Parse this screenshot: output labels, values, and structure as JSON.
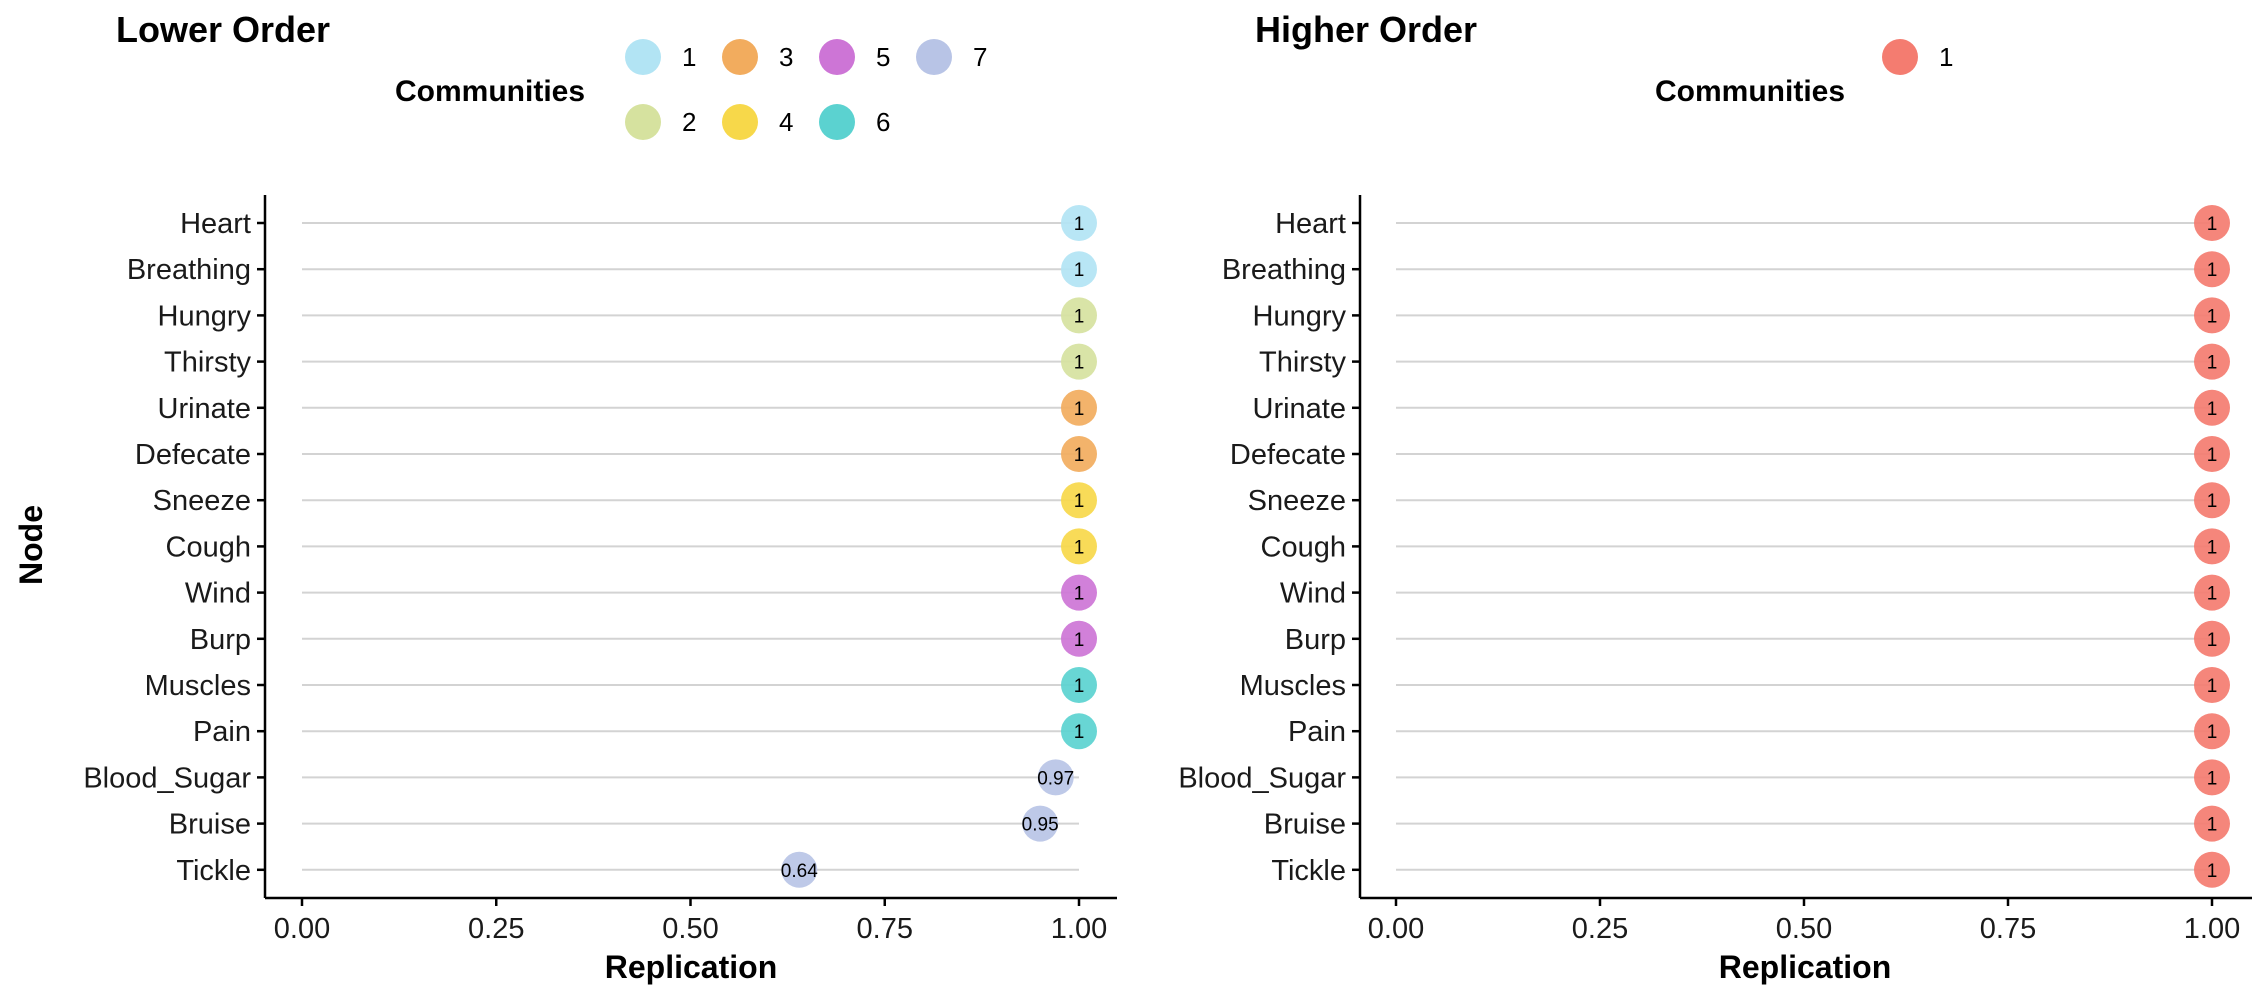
{
  "colors": {
    "1": "#b2e4f4",
    "2": "#d6e29f",
    "3": "#f2ac5e",
    "4": "#f7d84a",
    "5": "#cd75d6",
    "6": "#5bd2d0",
    "7": "#b8c4e6",
    "higher_1": "#f47c70"
  },
  "chart_data": [
    {
      "type": "scatter",
      "title": "Lower Order",
      "xlabel": "Replication",
      "ylabel": "Node",
      "xlim": [
        0,
        1
      ],
      "x_ticks": [
        "0.00",
        "0.25",
        "0.50",
        "0.75",
        "1.00"
      ],
      "x_tick_values": [
        0,
        0.25,
        0.5,
        0.75,
        1
      ],
      "legend": {
        "title": "Communities",
        "position": "top",
        "entries": [
          "1",
          "2",
          "3",
          "4",
          "5",
          "6",
          "7"
        ]
      },
      "nodes": [
        "Heart",
        "Breathing",
        "Hungry",
        "Thirsty",
        "Urinate",
        "Defecate",
        "Sneeze",
        "Cough",
        "Wind",
        "Burp",
        "Muscles",
        "Pain",
        "Blood_Sugar",
        "Bruise",
        "Tickle"
      ],
      "values": [
        1,
        1,
        1,
        1,
        1,
        1,
        1,
        1,
        1,
        1,
        1,
        1,
        0.97,
        0.95,
        0.64
      ],
      "labels": [
        "1",
        "1",
        "1",
        "1",
        "1",
        "1",
        "1",
        "1",
        "1",
        "1",
        "1",
        "1",
        "0.97",
        "0.95",
        "0.64"
      ],
      "communities": [
        "1",
        "1",
        "2",
        "2",
        "3",
        "3",
        "4",
        "4",
        "5",
        "5",
        "6",
        "6",
        "7",
        "7",
        "7"
      ]
    },
    {
      "type": "scatter",
      "title": "Higher Order",
      "xlabel": "Replication",
      "ylabel": "",
      "xlim": [
        0,
        1
      ],
      "x_ticks": [
        "0.00",
        "0.25",
        "0.50",
        "0.75",
        "1.00"
      ],
      "x_tick_values": [
        0,
        0.25,
        0.5,
        0.75,
        1
      ],
      "legend": {
        "title": "Communities",
        "position": "top",
        "entries": [
          "1"
        ]
      },
      "nodes": [
        "Heart",
        "Breathing",
        "Hungry",
        "Thirsty",
        "Urinate",
        "Defecate",
        "Sneeze",
        "Cough",
        "Wind",
        "Burp",
        "Muscles",
        "Pain",
        "Blood_Sugar",
        "Bruise",
        "Tickle"
      ],
      "values": [
        1,
        1,
        1,
        1,
        1,
        1,
        1,
        1,
        1,
        1,
        1,
        1,
        1,
        1,
        1
      ],
      "labels": [
        "1",
        "1",
        "1",
        "1",
        "1",
        "1",
        "1",
        "1",
        "1",
        "1",
        "1",
        "1",
        "1",
        "1",
        "1"
      ],
      "communities": [
        "higher_1",
        "higher_1",
        "higher_1",
        "higher_1",
        "higher_1",
        "higher_1",
        "higher_1",
        "higher_1",
        "higher_1",
        "higher_1",
        "higher_1",
        "higher_1",
        "higher_1",
        "higher_1",
        "higher_1"
      ]
    }
  ]
}
